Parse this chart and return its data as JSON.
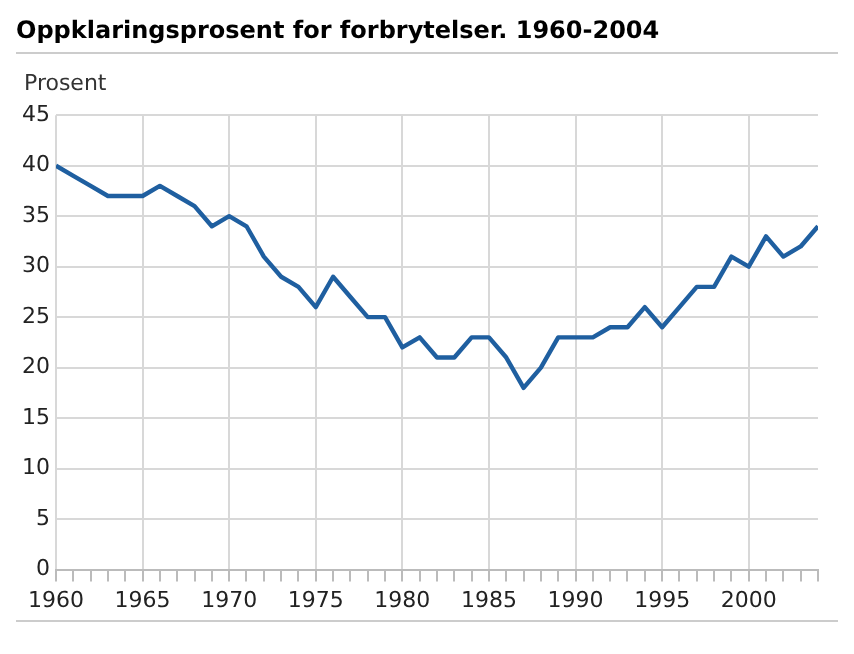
{
  "chart_data": {
    "type": "line",
    "title": "Oppklaringsprosent for forbrytelser. 1960-2004",
    "ylabel": "Prosent",
    "x": [
      1960,
      1961,
      1962,
      1963,
      1964,
      1965,
      1966,
      1967,
      1968,
      1969,
      1970,
      1971,
      1972,
      1973,
      1974,
      1975,
      1976,
      1977,
      1978,
      1979,
      1980,
      1981,
      1982,
      1983,
      1984,
      1985,
      1986,
      1987,
      1988,
      1989,
      1990,
      1991,
      1992,
      1993,
      1994,
      1995,
      1996,
      1997,
      1998,
      1999,
      2000,
      2001,
      2002,
      2003,
      2004
    ],
    "series": [
      {
        "color": "#1f5fa0",
        "values": [
          40,
          39,
          38,
          37,
          37,
          37,
          38,
          37,
          36,
          34,
          35,
          34,
          31,
          29,
          28,
          26,
          29,
          27,
          25,
          25,
          22,
          23,
          21,
          21,
          23,
          23,
          21,
          18,
          20,
          23,
          23,
          23,
          24,
          24,
          26,
          24,
          26,
          28,
          28,
          31,
          30,
          33,
          31,
          32,
          34
        ]
      }
    ],
    "xlim": [
      1960,
      2004
    ],
    "xticks": [
      1960,
      {
        "value": 1961,
        "label": null
      },
      {
        "value": 1962,
        "label": null
      },
      {
        "value": 1963,
        "label": null
      },
      {
        "value": 1964,
        "label": null
      },
      1965,
      {
        "value": 1966,
        "label": null
      },
      {
        "value": 1967,
        "label": null
      },
      {
        "value": 1968,
        "label": null
      },
      {
        "value": 1969,
        "label": null
      },
      1970,
      {
        "value": 1971,
        "label": null
      },
      {
        "value": 1972,
        "label": null
      },
      {
        "value": 1973,
        "label": null
      },
      {
        "value": 1974,
        "label": null
      },
      1975,
      {
        "value": 1976,
        "label": null
      },
      {
        "value": 1977,
        "label": null
      },
      {
        "value": 1978,
        "label": null
      },
      {
        "value": 1979,
        "label": null
      },
      1980,
      {
        "value": 1981,
        "label": null
      },
      {
        "value": 1982,
        "label": null
      },
      {
        "value": 1983,
        "label": null
      },
      {
        "value": 1984,
        "label": null
      },
      1985,
      {
        "value": 1986,
        "label": null
      },
      {
        "value": 1987,
        "label": null
      },
      {
        "value": 1988,
        "label": null
      },
      {
        "value": 1989,
        "label": null
      },
      1990,
      {
        "value": 1991,
        "label": null
      },
      {
        "value": 1992,
        "label": null
      },
      {
        "value": 1993,
        "label": null
      },
      {
        "value": 1994,
        "label": null
      },
      1995,
      {
        "value": 1996,
        "label": null
      },
      {
        "value": 1997,
        "label": null
      },
      {
        "value": 1998,
        "label": null
      },
      {
        "value": 1999,
        "label": null
      },
      2000,
      {
        "value": 2001,
        "label": null
      },
      {
        "value": 2002,
        "label": null
      },
      {
        "value": 2003,
        "label": null
      },
      {
        "value": 2004,
        "label": null
      }
    ],
    "ylim": [
      0,
      45
    ],
    "yticks": [
      0,
      5,
      10,
      15,
      20,
      25,
      30,
      35,
      40,
      45
    ],
    "grid": true,
    "legend": false,
    "marker": "none",
    "line_style": "solid"
  }
}
